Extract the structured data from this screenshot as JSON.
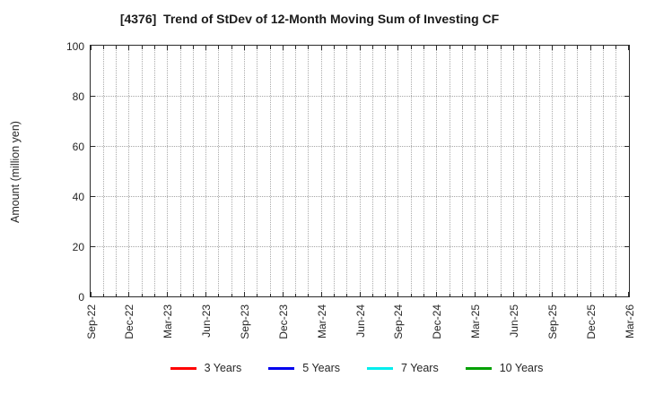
{
  "window": {
    "title": "[4376]  Trend of StDev of 12-Month Moving Sum of Investing CF"
  },
  "chart_data": {
    "type": "line",
    "title": "[4376]  Trend of StDev of 12-Month Moving Sum of Investing CF",
    "ylabel": "Amount (million yen)",
    "xlabel": "",
    "ylim": [
      0,
      100
    ],
    "yticks": [
      0,
      20,
      40,
      60,
      80,
      100
    ],
    "x_tick_labels": [
      "Sep-22",
      "Dec-22",
      "Mar-23",
      "Jun-23",
      "Sep-23",
      "Dec-23",
      "Mar-24",
      "Jun-24",
      "Sep-24",
      "Dec-24",
      "Mar-25",
      "Jun-25",
      "Sep-25",
      "Dec-25",
      "Mar-26"
    ],
    "x_tick_interval_months": 3,
    "months_span": 42,
    "grid": {
      "style": "dotted",
      "vertical": "monthly",
      "horizontal_at": [
        20,
        40,
        60,
        80
      ]
    },
    "legend_position": "bottom-center",
    "has_data": false,
    "series": [
      {
        "name": "3 Years",
        "color": "#ff0000",
        "values": []
      },
      {
        "name": "5 Years",
        "color": "#0000ee",
        "values": []
      },
      {
        "name": "7 Years",
        "color": "#00eeee",
        "values": []
      },
      {
        "name": "10 Years",
        "color": "#00a000",
        "values": []
      }
    ]
  }
}
